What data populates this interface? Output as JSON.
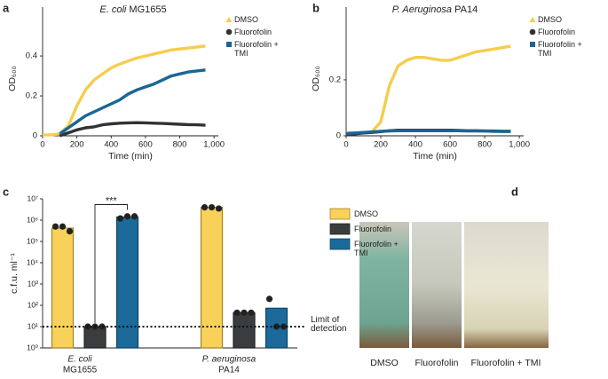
{
  "chart_data": [
    {
      "panel": "a",
      "type": "line",
      "title": {
        "organism": "E. coli",
        "strain": "MG1655"
      },
      "xlabel": "Time (min)",
      "ylabel": "OD₆₀₀",
      "x": [
        0,
        50,
        100,
        150,
        200,
        250,
        300,
        350,
        400,
        450,
        500,
        550,
        600,
        650,
        700,
        750,
        800,
        850,
        900,
        950
      ],
      "series": [
        {
          "name": "DMSO",
          "color": "#f5cd4f",
          "marker": "triangle",
          "values": [
            0.005,
            0.005,
            0.01,
            0.05,
            0.15,
            0.23,
            0.28,
            0.31,
            0.34,
            0.36,
            0.375,
            0.39,
            0.4,
            0.41,
            0.42,
            0.43,
            0.435,
            0.44,
            0.445,
            0.45
          ]
        },
        {
          "name": "Fluorofolin",
          "color": "#2f3336",
          "marker": "circle",
          "values": [
            null,
            null,
            0,
            0.015,
            0.03,
            0.04,
            0.045,
            0.055,
            0.06,
            0.063,
            0.065,
            0.066,
            0.065,
            0.063,
            0.062,
            0.06,
            0.058,
            0.056,
            0.055,
            0.053
          ]
        },
        {
          "name": "Fluorofolin + TMI",
          "color": "#1a6595",
          "marker": "square",
          "values": [
            null,
            null,
            0.01,
            0.04,
            0.07,
            0.1,
            0.12,
            0.14,
            0.16,
            0.18,
            0.21,
            0.23,
            0.245,
            0.26,
            0.28,
            0.3,
            0.31,
            0.32,
            0.325,
            0.33
          ]
        }
      ],
      "xlim": [
        0,
        1025
      ],
      "xticks": [
        0,
        200,
        400,
        600,
        800,
        {
          "value": 1000,
          "label": "1,000"
        }
      ],
      "ylim": [
        0,
        0.645
      ],
      "yticks": [
        0,
        0.2,
        0.4
      ],
      "legend": "upper right"
    },
    {
      "panel": "b",
      "type": "line",
      "title": {
        "organism": "P. Aeruginosa",
        "strain": "PA14"
      },
      "xlabel": "Time (min)",
      "ylabel": "OD₆₀₀",
      "x": [
        0,
        50,
        100,
        150,
        200,
        250,
        300,
        350,
        400,
        450,
        500,
        550,
        600,
        650,
        700,
        750,
        800,
        850,
        900,
        950
      ],
      "series": [
        {
          "name": "DMSO",
          "color": "#f5cd4f",
          "marker": "triangle",
          "values": [
            0.01,
            0.01,
            0.01,
            0.015,
            0.05,
            0.18,
            0.25,
            0.27,
            0.28,
            0.28,
            0.275,
            0.27,
            0.27,
            0.28,
            0.29,
            0.3,
            0.305,
            0.31,
            0.315,
            0.32
          ]
        },
        {
          "name": "Fluorofolin",
          "color": "#2f3336",
          "marker": "circle",
          "values": [
            0.005,
            0.007,
            0.01,
            0.012,
            0.015,
            0.018,
            0.02,
            0.02,
            0.02,
            0.02,
            0.02,
            0.02,
            0.02,
            0.019,
            0.018,
            0.018,
            0.017,
            0.017,
            0.016,
            0.016
          ]
        },
        {
          "name": "Fluorofolin + TMI",
          "color": "#1a6595",
          "marker": "square",
          "values": [
            0.008,
            0.01,
            0.012,
            0.014,
            0.016,
            0.017,
            0.018,
            0.018,
            0.018,
            0.018,
            0.018,
            0.018,
            0.018,
            0.018,
            0.017,
            0.017,
            0.017,
            0.016,
            0.016,
            0.016
          ]
        }
      ],
      "xlim": [
        0,
        1025
      ],
      "xticks": [
        0,
        200,
        400,
        600,
        800,
        {
          "value": 1000,
          "label": "1,000"
        }
      ],
      "ylim": [
        0,
        0.46
      ],
      "yticks": [
        0,
        0.2
      ],
      "legend": "upper right"
    },
    {
      "panel": "c",
      "type": "bar",
      "ylabel": "c.f.u. ml⁻¹",
      "log": true,
      "categories": [
        [
          "E. coli",
          "MG1655"
        ],
        [
          "P. aeruginosa",
          "PA14"
        ]
      ],
      "series": [
        {
          "name": "DMSO",
          "color": "#f8d15b",
          "edge": "#a5841f",
          "values": [
            420000,
            4000000
          ],
          "points": [
            [
              500000,
              500000,
              300000
            ],
            [
              4000000,
              4000000,
              3500000
            ]
          ]
        },
        {
          "name": "Fluorofolin",
          "color": "#3a3d3f",
          "edge": "#222222",
          "values": [
            10,
            45
          ],
          "points": [
            [
              10,
              10,
              10
            ],
            [
              45,
              45,
              45
            ]
          ]
        },
        {
          "name": "Fluorofolin + TMI",
          "color": "#1b6a99",
          "edge": "#0f4466",
          "values": [
            1400000,
            73
          ],
          "points": [
            [
              1200000,
              1500000,
              1500000
            ],
            [
              200,
              10,
              10
            ]
          ]
        }
      ],
      "ylim": [
        1,
        10000000
      ],
      "yticks": [
        {
          "value": 1,
          "label": "10⁰"
        },
        {
          "value": 10,
          "label": "10¹"
        },
        {
          "value": 100,
          "label": "10²"
        },
        {
          "value": 1000,
          "label": "10³"
        },
        {
          "value": 10000,
          "label": "10⁴"
        },
        {
          "value": 100000,
          "label": "10⁵"
        },
        {
          "value": 1000000,
          "label": "10⁶"
        },
        {
          "value": 10000000,
          "label": "10⁷"
        }
      ],
      "reference_line": {
        "value": 10,
        "label": "Limit of detection"
      },
      "annotation": "***",
      "legend": "right"
    }
  ],
  "photos": {
    "panel": "d",
    "labels": [
      "DMSO",
      "Fluorofolin",
      "Fluorofolin + TMI"
    ]
  }
}
